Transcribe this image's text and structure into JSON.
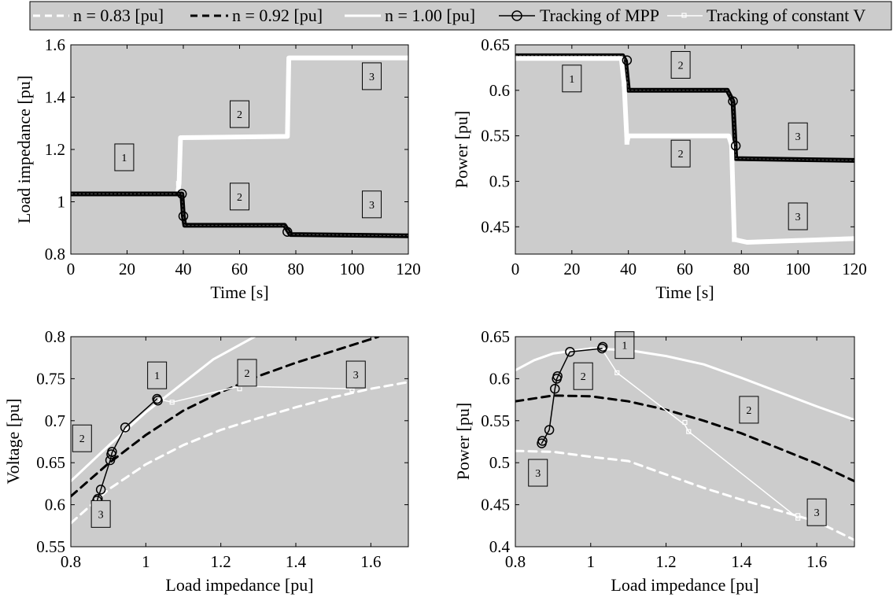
{
  "colors": {
    "plot_bg": "#cccccc",
    "mpp": "#000000",
    "constv": "#ffffff",
    "n083": "#ffffff",
    "n092": "#000000",
    "n100": "#ffffff"
  },
  "legend": {
    "items": [
      {
        "key": "n083",
        "label": "n = 0.83 [pu]",
        "style": "white-dashed"
      },
      {
        "key": "n092",
        "label": "n = 0.92 [pu]",
        "style": "black-dashed"
      },
      {
        "key": "n100",
        "label": "n = 1.00 [pu]",
        "style": "white-solid"
      },
      {
        "key": "mpp",
        "label": "Tracking of MPP",
        "style": "black-circle-line"
      },
      {
        "key": "constv",
        "label": "Tracking of constant V",
        "style": "white-square-line"
      }
    ]
  },
  "chart_data": [
    {
      "id": "a",
      "type": "line",
      "xlabel": "Time [s]",
      "ylabel": "Load impedance [pu]",
      "xlim": [
        0,
        120
      ],
      "ylim": [
        0.8,
        1.6
      ],
      "xticks": [
        0,
        20,
        40,
        60,
        80,
        100,
        120
      ],
      "yticks": [
        0.8,
        1,
        1.2,
        1.4,
        1.6
      ],
      "yticklabels": [
        "0.8",
        "1",
        "1.2",
        "1.4",
        "1.6"
      ],
      "series": [
        {
          "key": "constv",
          "style": "thick",
          "points": [
            [
              0,
              1.03
            ],
            [
              38,
              1.03
            ],
            [
              38.5,
              1.07
            ],
            [
              39,
              1.245
            ],
            [
              77,
              1.25
            ],
            [
              77.5,
              1.55
            ],
            [
              120,
              1.55
            ]
          ]
        },
        {
          "key": "mpp",
          "style": "thick",
          "points": [
            [
              0,
              1.03
            ],
            [
              39.5,
              1.03
            ],
            [
              40,
              0.945
            ],
            [
              40.5,
              0.91
            ],
            [
              76,
              0.91
            ],
            [
              78,
              0.875
            ],
            [
              120,
              0.87
            ]
          ]
        }
      ],
      "markers": [
        {
          "key": "mpp",
          "points": [
            [
              40,
              0.945
            ],
            [
              39.5,
              1.03
            ],
            [
              77,
              0.885
            ]
          ]
        },
        {
          "key": "constv",
          "points": [
            [
              38.3,
              1.07
            ]
          ]
        }
      ],
      "annotations": [
        {
          "text": "1",
          "x": 19,
          "y": 1.17
        },
        {
          "text": "2",
          "x": 60,
          "y": 1.335
        },
        {
          "text": "3",
          "x": 107,
          "y": 1.48
        },
        {
          "text": "2",
          "x": 60,
          "y": 1.02
        },
        {
          "text": "3",
          "x": 107,
          "y": 0.99
        }
      ]
    },
    {
      "id": "b",
      "type": "line",
      "xlabel": "Time [s]",
      "ylabel": "Power [pu]",
      "xlim": [
        0,
        120
      ],
      "ylim": [
        0.42,
        0.65
      ],
      "xticks": [
        0,
        20,
        40,
        60,
        80,
        100,
        120
      ],
      "yticks": [
        0.45,
        0.5,
        0.55,
        0.6,
        0.65
      ],
      "yticklabels": [
        "0.45",
        "0.5",
        "0.55",
        "0.6",
        "0.65"
      ],
      "series": [
        {
          "key": "mpp",
          "style": "thick",
          "points": [
            [
              0,
              0.638
            ],
            [
              38,
              0.638
            ],
            [
              39,
              0.632
            ],
            [
              40,
              0.6
            ],
            [
              75,
              0.6
            ],
            [
              77,
              0.588
            ],
            [
              78,
              0.525
            ],
            [
              120,
              0.523
            ]
          ]
        },
        {
          "key": "constv",
          "style": "thick",
          "points": [
            [
              0,
              0.635
            ],
            [
              37.5,
              0.635
            ],
            [
              38.5,
              0.607
            ],
            [
              39.5,
              0.543
            ],
            [
              40,
              0.55
            ],
            [
              75.5,
              0.55
            ],
            [
              76.5,
              0.54
            ],
            [
              77.5,
              0.436
            ],
            [
              82,
              0.433
            ],
            [
              120,
              0.437
            ]
          ]
        }
      ],
      "markers": [
        {
          "key": "mpp",
          "points": [
            [
              39.5,
              0.633
            ],
            [
              77,
              0.588
            ],
            [
              78,
              0.539
            ]
          ]
        },
        {
          "key": "constv",
          "points": [
            [
              38.5,
              0.607
            ],
            [
              39.5,
              0.543
            ],
            [
              77.5,
              0.436
            ]
          ]
        }
      ],
      "annotations": [
        {
          "text": "1",
          "x": 20,
          "y": 0.613
        },
        {
          "text": "2",
          "x": 58.5,
          "y": 0.628
        },
        {
          "text": "2",
          "x": 58.5,
          "y": 0.5305
        },
        {
          "text": "3",
          "x": 100,
          "y": 0.5495
        },
        {
          "text": "3",
          "x": 100,
          "y": 0.4615
        }
      ]
    },
    {
      "id": "c",
      "type": "line",
      "xlabel": "Load impedance [pu]",
      "ylabel": "Voltage [pu]",
      "xlim": [
        0.8,
        1.7
      ],
      "ylim": [
        0.55,
        0.8
      ],
      "xticks": [
        0.8,
        1,
        1.2,
        1.4,
        1.6
      ],
      "xticklabels": [
        "0.8",
        "1",
        "1.2",
        "1.4",
        "1.6"
      ],
      "yticks": [
        0.55,
        0.6,
        0.65,
        0.7,
        0.75,
        0.8
      ],
      "yticklabels": [
        "0.55",
        "0.6",
        "0.65",
        "0.7",
        "0.75",
        "0.8"
      ],
      "series": [
        {
          "key": "n083",
          "style": "dashed",
          "points": [
            [
              0.8,
              0.578
            ],
            [
              0.9,
              0.618
            ],
            [
              1.0,
              0.648
            ],
            [
              1.1,
              0.671
            ],
            [
              1.2,
              0.689
            ],
            [
              1.3,
              0.703
            ],
            [
              1.4,
              0.716
            ],
            [
              1.5,
              0.728
            ],
            [
              1.6,
              0.738
            ],
            [
              1.7,
              0.746
            ]
          ]
        },
        {
          "key": "n092",
          "style": "dashed",
          "points": [
            [
              0.8,
              0.61
            ],
            [
              0.9,
              0.649
            ],
            [
              1.0,
              0.683
            ],
            [
              1.1,
              0.712
            ],
            [
              1.2,
              0.734
            ],
            [
              1.3,
              0.753
            ],
            [
              1.4,
              0.769
            ],
            [
              1.5,
              0.783
            ],
            [
              1.6,
              0.797
            ],
            [
              1.62,
              0.8
            ]
          ]
        },
        {
          "key": "n100",
          "style": "solid",
          "points": [
            [
              0.8,
              0.628
            ],
            [
              0.9,
              0.67
            ],
            [
              1.0,
              0.71
            ],
            [
              1.1,
              0.745
            ],
            [
              1.18,
              0.773
            ],
            [
              1.29,
              0.8
            ]
          ]
        },
        {
          "key": "constv",
          "style": "thin",
          "points": [
            [
              1.03,
              0.726
            ],
            [
              1.07,
              0.722
            ],
            [
              1.25,
              0.741
            ],
            [
              1.55,
              0.738
            ]
          ]
        },
        {
          "key": "mpp",
          "style": "thin",
          "points": [
            [
              0.87,
              0.605
            ],
            [
              0.88,
              0.618
            ],
            [
              0.905,
              0.653
            ],
            [
              0.91,
              0.662
            ],
            [
              0.945,
              0.692
            ],
            [
              1.03,
              0.726
            ]
          ]
        }
      ],
      "markers": [
        {
          "key": "mpp",
          "points": [
            [
              0.87,
              0.605
            ],
            [
              0.872,
              0.607
            ],
            [
              0.88,
              0.618
            ],
            [
              0.905,
              0.653
            ],
            [
              0.908,
              0.66
            ],
            [
              0.91,
              0.663
            ],
            [
              0.945,
              0.692
            ],
            [
              1.03,
              0.726
            ],
            [
              1.032,
              0.724
            ]
          ]
        },
        {
          "key": "constv",
          "points": [
            [
              1.07,
              0.722
            ],
            [
              1.25,
              0.745
            ],
            [
              1.25,
              0.738
            ],
            [
              1.55,
              0.737
            ],
            [
              1.55,
              0.74
            ]
          ]
        }
      ],
      "annotations": [
        {
          "text": "1",
          "x": 1.03,
          "y": 0.754
        },
        {
          "text": "2",
          "x": 1.27,
          "y": 0.757
        },
        {
          "text": "3",
          "x": 1.56,
          "y": 0.755
        },
        {
          "text": "2",
          "x": 0.83,
          "y": 0.679
        },
        {
          "text": "3",
          "x": 0.88,
          "y": 0.589
        }
      ]
    },
    {
      "id": "d",
      "type": "line",
      "xlabel": "Load impedance [pu]",
      "ylabel": "Power [pu]",
      "xlim": [
        0.8,
        1.7
      ],
      "ylim": [
        0.4,
        0.65
      ],
      "xticks": [
        0.8,
        1,
        1.2,
        1.4,
        1.6
      ],
      "xticklabels": [
        "0.8",
        "1",
        "1.2",
        "1.4",
        "1.6"
      ],
      "yticks": [
        0.4,
        0.45,
        0.5,
        0.55,
        0.6,
        0.65
      ],
      "yticklabels": [
        "0.4",
        "0.45",
        "0.5",
        "0.55",
        "0.6",
        "0.65"
      ],
      "series": [
        {
          "key": "n100",
          "style": "solid",
          "points": [
            [
              0.8,
              0.61
            ],
            [
              0.85,
              0.622
            ],
            [
              0.9,
              0.63
            ],
            [
              1.0,
              0.636
            ],
            [
              1.1,
              0.634
            ],
            [
              1.2,
              0.627
            ],
            [
              1.3,
              0.617
            ],
            [
              1.4,
              0.601
            ],
            [
              1.5,
              0.584
            ],
            [
              1.6,
              0.567
            ],
            [
              1.7,
              0.551
            ]
          ]
        },
        {
          "key": "n092",
          "style": "dashed",
          "points": [
            [
              0.8,
              0.573
            ],
            [
              0.9,
              0.58
            ],
            [
              1.0,
              0.579
            ],
            [
              1.1,
              0.573
            ],
            [
              1.2,
              0.563
            ],
            [
              1.3,
              0.55
            ],
            [
              1.4,
              0.535
            ],
            [
              1.5,
              0.517
            ],
            [
              1.6,
              0.499
            ],
            [
              1.7,
              0.478
            ]
          ]
        },
        {
          "key": "n083",
          "style": "dashed",
          "points": [
            [
              0.8,
              0.514
            ],
            [
              0.9,
              0.513
            ],
            [
              1.0,
              0.507
            ],
            [
              1.1,
              0.502
            ],
            [
              1.2,
              0.486
            ],
            [
              1.3,
              0.47
            ],
            [
              1.4,
              0.456
            ],
            [
              1.5,
              0.443
            ],
            [
              1.6,
              0.43
            ],
            [
              1.7,
              0.408
            ]
          ]
        },
        {
          "key": "constv",
          "style": "thin",
          "points": [
            [
              1.03,
              0.635
            ],
            [
              1.07,
              0.607
            ],
            [
              1.25,
              0.545
            ],
            [
              1.26,
              0.537
            ],
            [
              1.55,
              0.434
            ]
          ]
        },
        {
          "key": "mpp",
          "style": "thin",
          "points": [
            [
              0.87,
              0.523
            ],
            [
              0.89,
              0.539
            ],
            [
              0.905,
              0.588
            ],
            [
              0.91,
              0.6
            ],
            [
              0.945,
              0.632
            ],
            [
              1.03,
              0.636
            ]
          ]
        }
      ],
      "markers": [
        {
          "key": "mpp",
          "points": [
            [
              0.87,
              0.523
            ],
            [
              0.872,
              0.526
            ],
            [
              0.89,
              0.539
            ],
            [
              0.905,
              0.588
            ],
            [
              0.91,
              0.6
            ],
            [
              0.912,
              0.603
            ],
            [
              0.945,
              0.632
            ],
            [
              1.03,
              0.636
            ],
            [
              1.032,
              0.638
            ]
          ]
        },
        {
          "key": "constv",
          "points": [
            [
              1.07,
              0.607
            ],
            [
              1.25,
              0.548
            ],
            [
              1.26,
              0.537
            ],
            [
              1.55,
              0.434
            ],
            [
              1.55,
              0.437
            ]
          ]
        }
      ],
      "annotations": [
        {
          "text": "1",
          "x": 1.09,
          "y": 0.64
        },
        {
          "text": "2",
          "x": 0.98,
          "y": 0.603
        },
        {
          "text": "2",
          "x": 1.42,
          "y": 0.563
        },
        {
          "text": "3",
          "x": 0.86,
          "y": 0.488
        },
        {
          "text": "3",
          "x": 1.6,
          "y": 0.441
        }
      ]
    }
  ]
}
